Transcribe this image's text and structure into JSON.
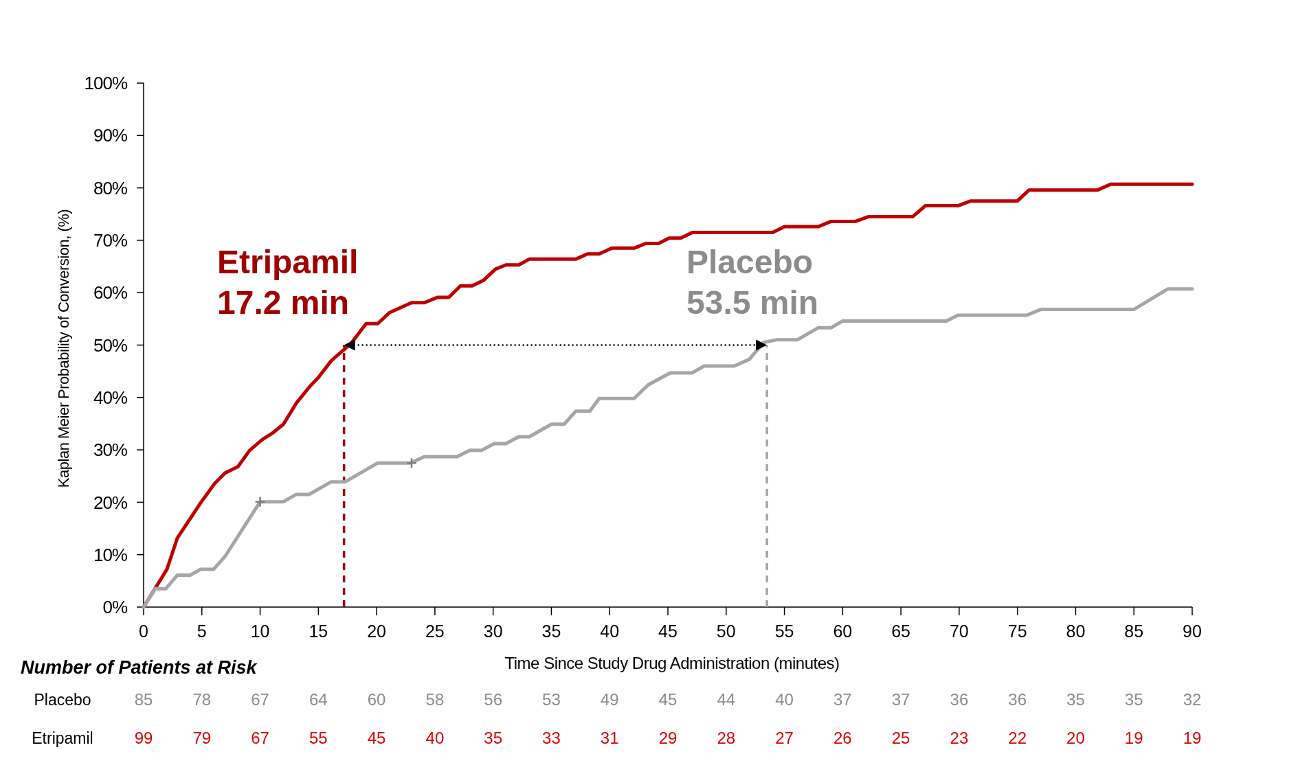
{
  "chart_data": {
    "type": "line",
    "xlabel": "Time Since Study Drug Administration (minutes)",
    "ylabel": "Kaplan Meier Probability of Conversion, (%)",
    "xlim": [
      0,
      90
    ],
    "ylim": [
      0,
      100
    ],
    "xticks": [
      0,
      5,
      10,
      15,
      20,
      25,
      30,
      35,
      40,
      45,
      50,
      55,
      60,
      65,
      70,
      75,
      80,
      85,
      90
    ],
    "yticks": [
      {
        "value": 0,
        "label": "0%"
      },
      {
        "value": 10,
        "label": "10%"
      },
      {
        "value": 20,
        "label": "20%"
      },
      {
        "value": 30,
        "label": "30%"
      },
      {
        "value": 40,
        "label": "40%"
      },
      {
        "value": 50,
        "label": "50%"
      },
      {
        "value": 60,
        "label": "60%"
      },
      {
        "value": 70,
        "label": "70%"
      },
      {
        "value": 80,
        "label": "80%"
      },
      {
        "value": 90,
        "label": "90%"
      },
      {
        "value": 100,
        "label": "100%"
      }
    ],
    "grid": false,
    "line_style": "solid",
    "series": [
      {
        "name": "Etripamil",
        "color": "#c00000",
        "x": [
          0,
          2,
          2.9,
          4.9,
          6.1,
          7,
          8.1,
          9.1,
          10.2,
          11,
          12,
          13.1,
          14.3,
          15,
          16.1,
          17.8,
          19.1,
          20.1,
          21.1,
          23,
          24.1,
          25.2,
          26.2,
          27.2,
          28.2,
          29.2,
          30.2,
          31.1,
          32.2,
          33.1,
          37.1,
          38.1,
          39.1,
          40.2,
          42.1,
          43.1,
          44.2,
          45.1,
          46.1,
          47.1,
          54,
          55,
          57.9,
          59,
          61.1,
          62.2,
          66,
          67.1,
          69.9,
          71,
          75,
          76,
          81.9,
          83,
          90
        ],
        "values": [
          0,
          7.2,
          13.2,
          19.9,
          23.6,
          25.6,
          26.8,
          29.9,
          32,
          33.1,
          34.9,
          38.9,
          42.2,
          43.8,
          47,
          50.3,
          54.1,
          54.1,
          56.2,
          58.1,
          58.1,
          59.1,
          59.1,
          61.3,
          61.3,
          62.4,
          64.5,
          65.3,
          65.3,
          66.4,
          66.4,
          67.4,
          67.4,
          68.5,
          68.5,
          69.4,
          69.4,
          70.4,
          70.4,
          71.5,
          71.5,
          72.6,
          72.6,
          73.6,
          73.6,
          74.5,
          74.5,
          76.6,
          76.6,
          77.5,
          77.5,
          79.6,
          79.6,
          80.7,
          80.7
        ]
      },
      {
        "name": "Placebo",
        "color": "#a6a6a6",
        "x": [
          0,
          1,
          1.9,
          2.9,
          4,
          4.9,
          6,
          7,
          10,
          12,
          13.1,
          14.2,
          16.1,
          17.3,
          20.1,
          22.9,
          24.1,
          26.9,
          28,
          29,
          30.1,
          31.1,
          32.2,
          33.1,
          35,
          36.1,
          37.1,
          38.3,
          39.1,
          42.1,
          43.3,
          45.2,
          47.1,
          48.1,
          50.7,
          52,
          53.2,
          54.3,
          56.1,
          57.9,
          59,
          60,
          68.9,
          69.9,
          75.8,
          77,
          85,
          87.9,
          90
        ],
        "values": [
          0,
          3.5,
          3.5,
          6.1,
          6.1,
          7.2,
          7.2,
          9.7,
          20.1,
          20.1,
          21.5,
          21.5,
          23.9,
          23.9,
          27.5,
          27.5,
          28.7,
          28.7,
          29.9,
          29.9,
          31.2,
          31.2,
          32.5,
          32.5,
          34.9,
          34.9,
          37.4,
          37.4,
          39.8,
          39.8,
          42.4,
          44.7,
          44.7,
          46,
          46,
          47.3,
          50.5,
          51,
          51,
          53.3,
          53.3,
          54.6,
          54.6,
          55.7,
          55.7,
          56.8,
          56.8,
          60.7,
          60.7
        ]
      },
      {
        "type": "scatter",
        "marker": "cross",
        "color": "#808080",
        "x": [
          10,
          23
        ],
        "values": [
          20.1,
          27.5
        ]
      }
    ],
    "ref_lines": [
      {
        "axis": "x",
        "value": 17.2,
        "color": "#a00000",
        "line_style": "dashed"
      },
      {
        "axis": "x",
        "value": 53.5,
        "color": "#a6a6a6",
        "line_style": "dashed"
      }
    ],
    "annotations": [
      {
        "text": "17.2 min",
        "x": 17.2,
        "y": 50
      },
      {
        "text": "53.5 min",
        "x": 53.5,
        "y": 50
      },
      "Number of Patients at Risk",
      "Placebo",
      "85",
      "78",
      "67",
      "64",
      "60",
      "58",
      "56",
      "53",
      "49",
      "45",
      "44",
      "40",
      "37",
      "37",
      "36",
      "36",
      "35",
      "35",
      "32",
      "Etripamil",
      "99",
      "79",
      "67",
      "55",
      "45",
      "40",
      "35",
      "33",
      "31",
      "29",
      "28",
      "27",
      "26",
      "25",
      "23",
      "22",
      "20",
      "19",
      "19"
    ]
  }
}
